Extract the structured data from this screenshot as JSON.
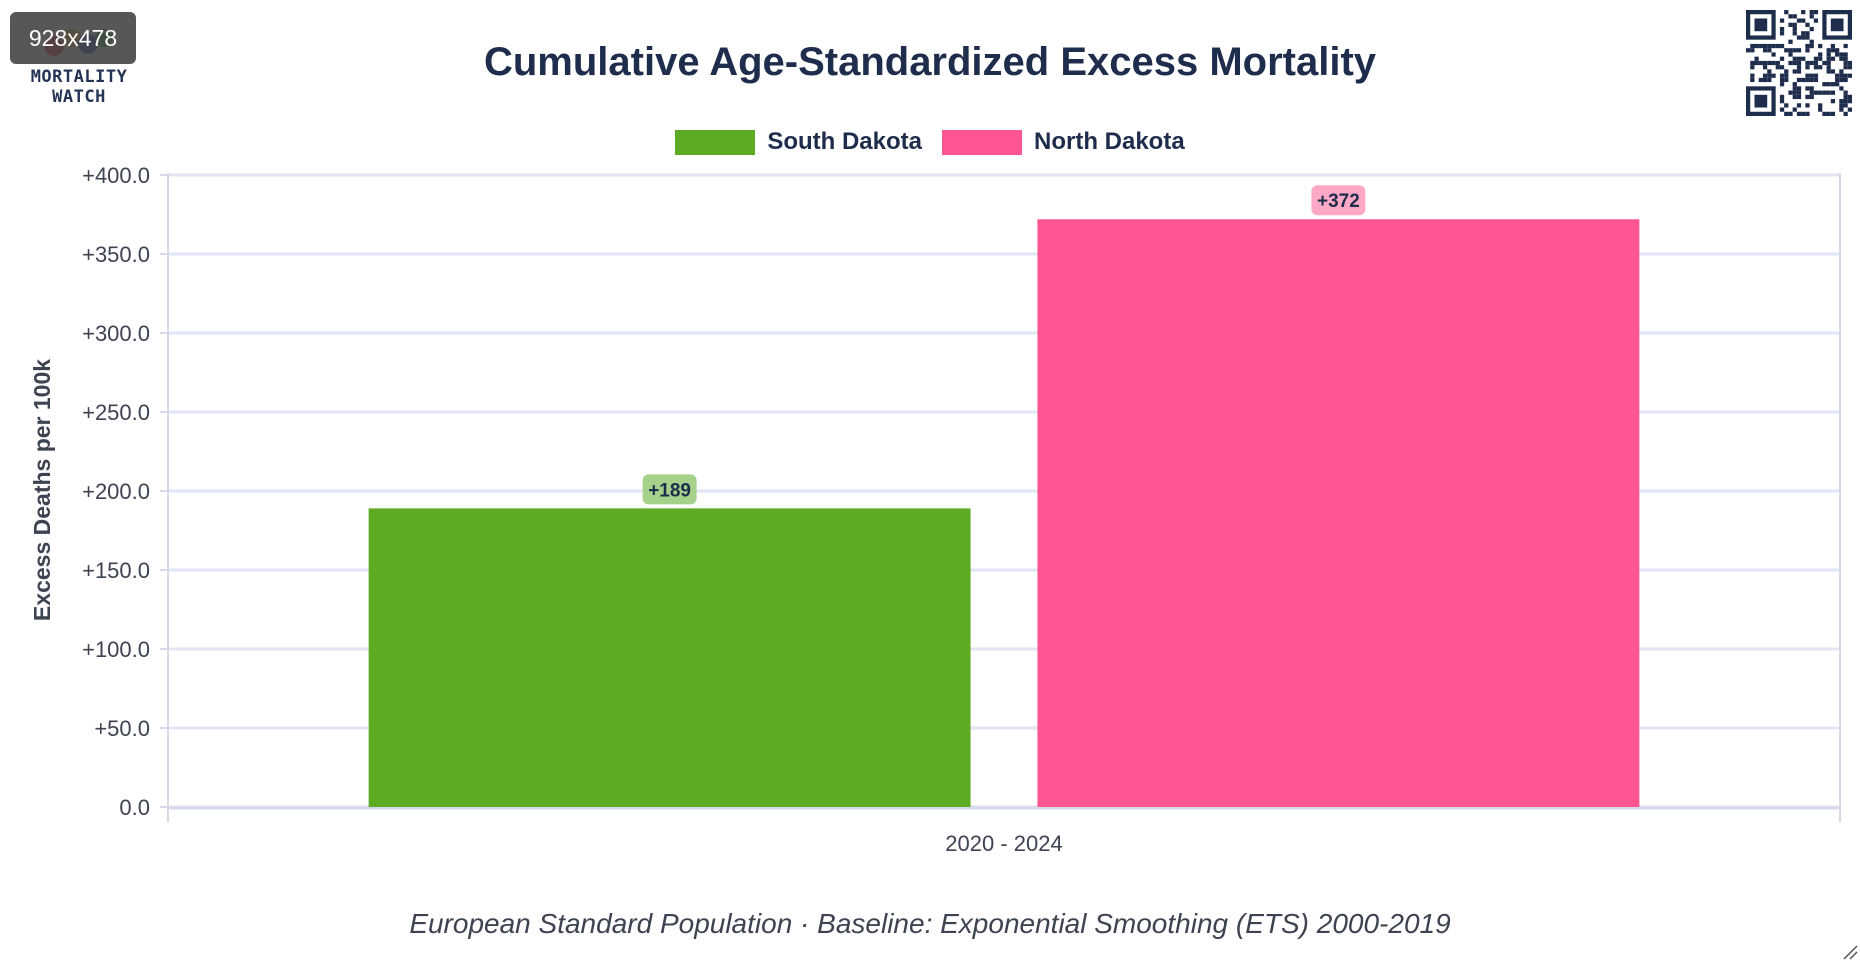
{
  "viewport_badge": "928x478",
  "logo": {
    "line1": "MORTALITY",
    "line2": "WATCH"
  },
  "footnote": "European Standard Population · Baseline: Exponential Smoothing (ETS) 2000-2019",
  "chart_data": {
    "type": "bar",
    "title": "Cumulative Age-Standardized Excess Mortality",
    "xlabel": "",
    "ylabel": "Excess Deaths per 100k",
    "categories": [
      "2020 - 2024"
    ],
    "series": [
      {
        "name": "South Dakota",
        "values": [
          189
        ],
        "color": "#5dab22",
        "label_bg": "#a6d18a",
        "data_labels": [
          "+189"
        ]
      },
      {
        "name": "North Dakota",
        "values": [
          372
        ],
        "color": "#ff5592",
        "label_bg": "#ffa9c6",
        "data_labels": [
          "+372"
        ]
      }
    ],
    "ylim": [
      0,
      400
    ],
    "y_ticks": [
      0,
      50,
      100,
      150,
      200,
      250,
      300,
      350,
      400
    ],
    "y_tick_labels": [
      "0.0",
      "+50.0",
      "+100.0",
      "+150.0",
      "+200.0",
      "+250.0",
      "+300.0",
      "+350.0",
      "+400.0"
    ],
    "grid": true,
    "legend_position": "top-center"
  },
  "colors": {
    "title": "#1f2d4d",
    "axis_text": "#3d4350",
    "grid": "#e1e4f4",
    "axis_line": "#d6d9ec"
  }
}
